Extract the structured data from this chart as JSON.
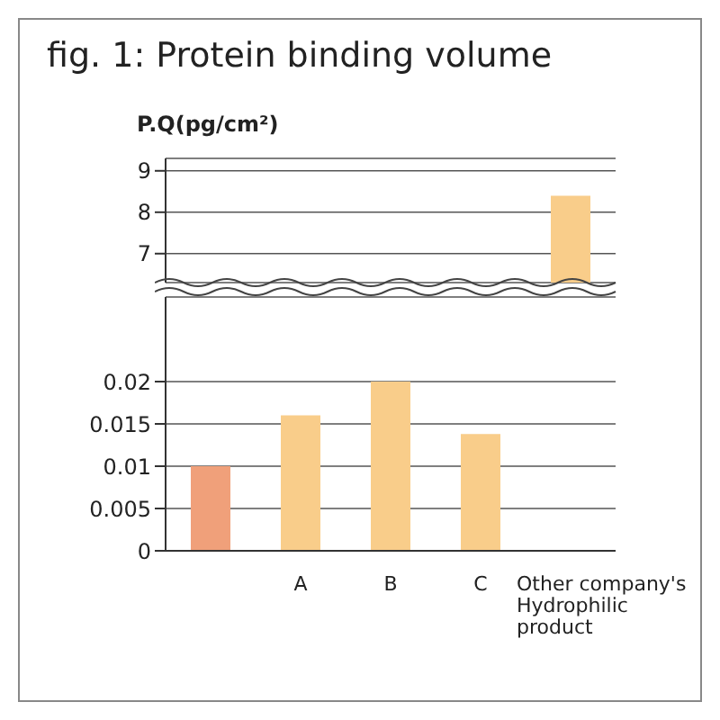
{
  "chart_data": [
    {
      "type": "bar",
      "title": "fig. 1: Protein binding volume",
      "ylabel": "P.Q(pg/cm²)",
      "categories": [
        null,
        null,
        null,
        null,
        null
      ],
      "values": [
        null,
        null,
        null,
        null,
        8.4
      ],
      "colors": [
        "#f0a07a",
        "#f9cd8a",
        "#f9cd8a",
        "#f9cd8a",
        "#f9cd8a"
      ],
      "ylim": [
        6.3,
        9.3
      ],
      "yticks": [
        7,
        8,
        9
      ],
      "grid": "y",
      "tick_labels": "y"
    },
    {
      "type": "bar",
      "categories": [
        null,
        "A",
        "B",
        "C",
        "Other company's Hydrophilic product"
      ],
      "values": [
        0.01,
        0.016,
        0.02,
        0.0138,
        null
      ],
      "colors": [
        "#f0a07a",
        "#f9cd8a",
        "#f9cd8a",
        "#f9cd8a",
        "#f9cd8a"
      ],
      "ylim": [
        0,
        0.03
      ],
      "yticks": [
        0,
        0.005,
        0.01,
        0.015,
        0.02
      ],
      "grid": "y"
    }
  ]
}
